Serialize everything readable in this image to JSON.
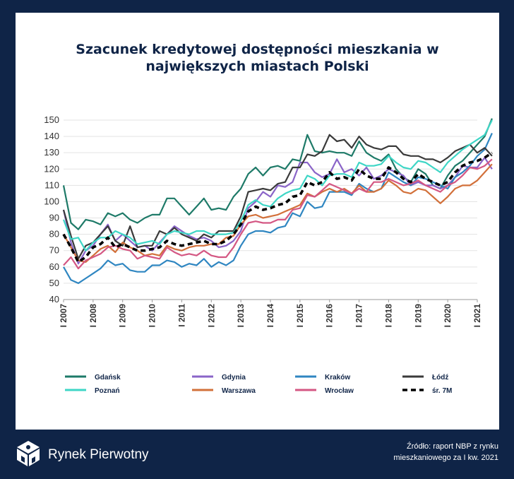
{
  "brand": {
    "name": "Rynek Pierwotny",
    "logo_icon": "cube-logo-icon"
  },
  "source_note": {
    "line1": "Źródło: raport NBP z rynku",
    "line2": "mieszkaniowego za I kw. 2021"
  },
  "chart_data": {
    "type": "line",
    "title_line1": "Szacunek kredytowej dostępności mieszkania w",
    "title_line2": "największych miastach Polski",
    "ylim": [
      40,
      150
    ],
    "yticks": [
      40,
      50,
      60,
      70,
      80,
      90,
      100,
      110,
      120,
      130,
      140,
      150
    ],
    "x_tick_labels": [
      "I 2007",
      "I 2008",
      "I 2009",
      "I 2010",
      "I 2011",
      "I 2012",
      "I 2013",
      "I 2014",
      "I 2015",
      "I 2016",
      "I 2017",
      "I 2018",
      "I 2019",
      "I 2020",
      "I 2021"
    ],
    "x_start": 2007.0,
    "x_end": 2021.0,
    "x_step": 0.25,
    "grid": "horizontal",
    "legend_position": "bottom",
    "series": [
      {
        "name": "Gdańsk",
        "color": "#1e7a68",
        "dash": false,
        "width": 2.2,
        "values": [
          110,
          87,
          83,
          89,
          88,
          86,
          93,
          91,
          93,
          89,
          87,
          90,
          92,
          92,
          102,
          102,
          97,
          92,
          97,
          102,
          95,
          96,
          95,
          103,
          108,
          117,
          121,
          116,
          121,
          122,
          120,
          126,
          125,
          141,
          131,
          130,
          131,
          130,
          130,
          128,
          137,
          130,
          127,
          125,
          129,
          120,
          115,
          112,
          120,
          117,
          110,
          108,
          116,
          122,
          125,
          130,
          135,
          140,
          151
        ]
      },
      {
        "name": "Gdynia",
        "color": "#8a64c8",
        "dash": false,
        "width": 2.2,
        "values": [
          95,
          75,
          62,
          70,
          73,
          80,
          86,
          76,
          80,
          76,
          72,
          73,
          70,
          75,
          80,
          85,
          82,
          79,
          77,
          78,
          76,
          72,
          73,
          76,
          82,
          96,
          100,
          106,
          103,
          110,
          109,
          112,
          124,
          124,
          118,
          115,
          117,
          126,
          118,
          120,
          116,
          121,
          114,
          116,
          120,
          118,
          116,
          110,
          112,
          110,
          110,
          108,
          110,
          115,
          122,
          121,
          121,
          127,
          120
        ]
      },
      {
        "name": "Kraków",
        "color": "#2f86c1",
        "dash": false,
        "width": 2.2,
        "values": [
          60,
          52,
          50,
          53,
          56,
          59,
          64,
          61,
          62,
          58,
          57,
          57,
          61,
          61,
          64,
          63,
          60,
          62,
          61,
          65,
          60,
          63,
          61,
          64,
          73,
          80,
          82,
          82,
          81,
          84,
          85,
          93,
          91,
          100,
          96,
          97,
          106,
          106,
          106,
          104,
          111,
          108,
          106,
          108,
          118,
          115,
          112,
          110,
          115,
          114,
          112,
          110,
          108,
          115,
          118,
          122,
          128,
          132,
          142
        ]
      },
      {
        "name": "Łódź",
        "color": "#3a3a3a",
        "dash": false,
        "width": 2.2,
        "values": [
          95,
          79,
          65,
          73,
          75,
          80,
          85,
          76,
          73,
          85,
          72,
          73,
          73,
          82,
          80,
          84,
          80,
          78,
          76,
          80,
          78,
          82,
          82,
          82,
          91,
          106,
          107,
          108,
          107,
          111,
          112,
          121,
          121,
          129,
          128,
          131,
          141,
          137,
          138,
          133,
          140,
          135,
          133,
          132,
          134,
          134,
          129,
          128,
          128,
          126,
          126,
          124,
          127,
          131,
          133,
          135,
          130,
          133,
          128
        ]
      },
      {
        "name": "Poznań",
        "color": "#3ed6c6",
        "dash": false,
        "width": 2.2,
        "values": [
          89,
          77,
          78,
          70,
          75,
          78,
          78,
          82,
          80,
          78,
          74,
          75,
          76,
          74,
          80,
          82,
          81,
          80,
          82,
          82,
          80,
          80,
          80,
          81,
          88,
          98,
          101,
          98,
          97,
          102,
          105,
          107,
          108,
          116,
          114,
          110,
          116,
          117,
          117,
          115,
          124,
          122,
          122,
          123,
          128,
          124,
          121,
          120,
          125,
          124,
          121,
          118,
          124,
          128,
          132,
          135,
          138,
          141,
          150
        ]
      },
      {
        "name": "Warszawa",
        "color": "#d2703a",
        "dash": false,
        "width": 2.2,
        "values": [
          80,
          72,
          64,
          63,
          67,
          71,
          73,
          69,
          75,
          72,
          70,
          67,
          68,
          67,
          73,
          71,
          70,
          72,
          73,
          73,
          74,
          74,
          78,
          79,
          86,
          91,
          92,
          90,
          91,
          92,
          94,
          96,
          98,
          105,
          103,
          106,
          108,
          106,
          108,
          105,
          110,
          106,
          106,
          108,
          113,
          110,
          106,
          105,
          108,
          107,
          103,
          99,
          103,
          108,
          110,
          110,
          113,
          118,
          123
        ]
      },
      {
        "name": "Wrocław",
        "color": "#d45783",
        "dash": false,
        "width": 2.2,
        "values": [
          61,
          66,
          59,
          64,
          66,
          68,
          72,
          73,
          71,
          70,
          65,
          67,
          66,
          65,
          72,
          69,
          67,
          68,
          67,
          70,
          67,
          66,
          66,
          72,
          80,
          87,
          88,
          87,
          87,
          89,
          89,
          95,
          96,
          104,
          103,
          107,
          111,
          109,
          107,
          105,
          108,
          106,
          112,
          112,
          114,
          112,
          110,
          111,
          113,
          110,
          108,
          106,
          110,
          112,
          116,
          121,
          120,
          122,
          126
        ]
      },
      {
        "name": "śr. 7M",
        "color": "#000000",
        "dash": true,
        "width": 3.6,
        "values": [
          80,
          72,
          63,
          66,
          72,
          74,
          78,
          72,
          74,
          72,
          70,
          70,
          71,
          72,
          76,
          74,
          73,
          74,
          75,
          76,
          74,
          74,
          76,
          80,
          86,
          94,
          97,
          95,
          96,
          98,
          99,
          103,
          104,
          112,
          110,
          112,
          118,
          114,
          115,
          113,
          120,
          116,
          114,
          114,
          121,
          118,
          114,
          112,
          117,
          114,
          112,
          110,
          112,
          118,
          122,
          124,
          125,
          127,
          130
        ]
      }
    ]
  }
}
